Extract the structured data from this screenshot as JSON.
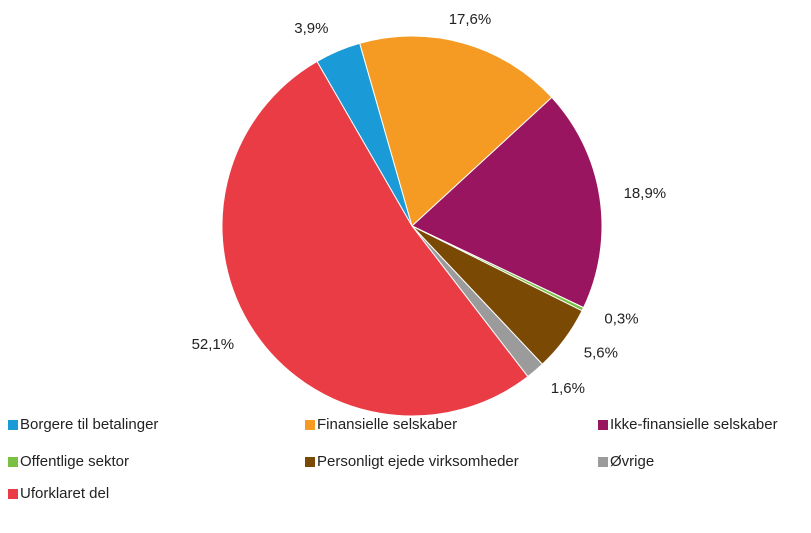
{
  "chart_data": {
    "type": "pie",
    "categories": [
      "Borgere til betalinger",
      "Finansielle selskaber",
      "Ikke-finansielle selskaber",
      "Offentlige sektor",
      "Personligt ejede virksomheder",
      "Øvrige",
      "Uforklaret del"
    ],
    "values": [
      3.9,
      17.6,
      18.9,
      0.3,
      5.6,
      1.6,
      52.1
    ],
    "value_labels": [
      "3,9%",
      "17,6%",
      "18,9%",
      "0,3%",
      "5,6%",
      "1,6%",
      "52,1%"
    ],
    "colors": [
      "#1a9ad6",
      "#f59a23",
      "#9a1560",
      "#7ac143",
      "#7a4a05",
      "#9b9b9b",
      "#ea3c44"
    ]
  }
}
